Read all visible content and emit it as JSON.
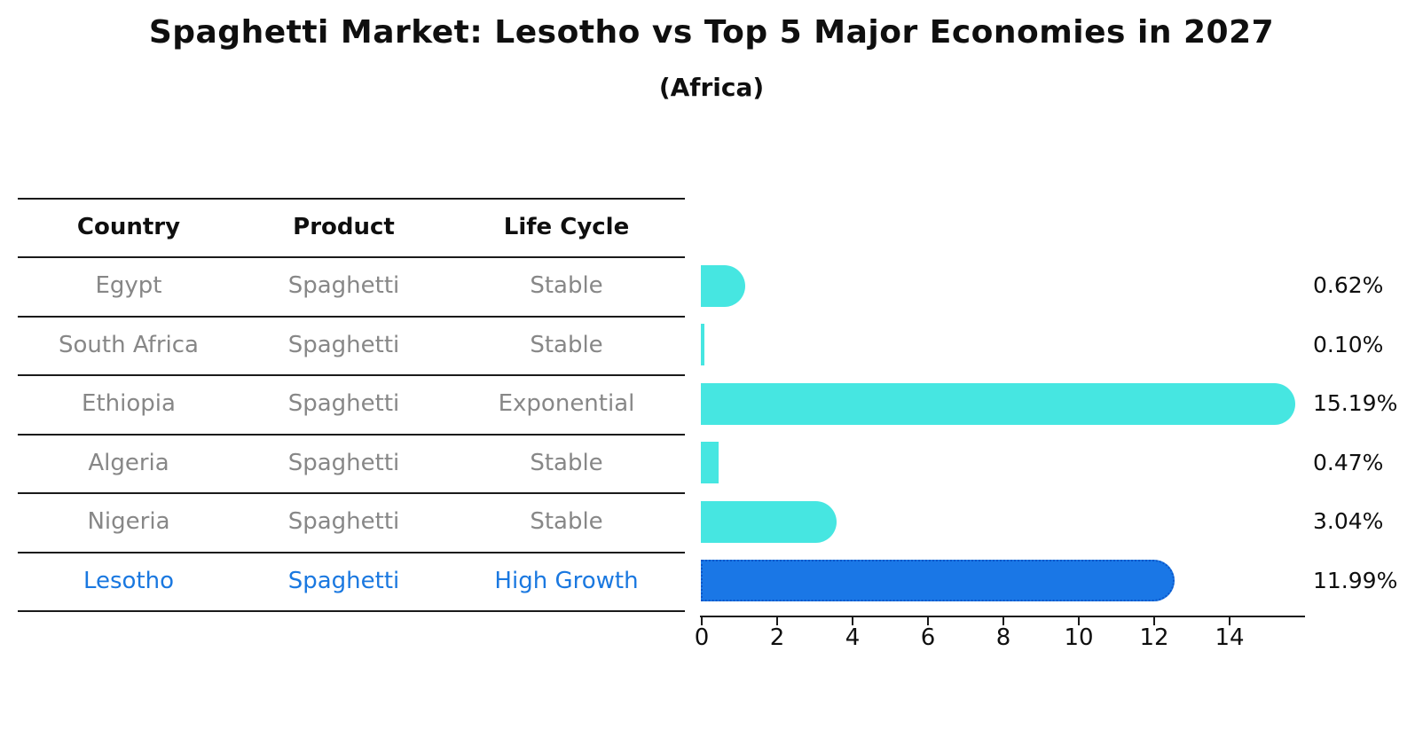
{
  "header": {
    "title": "Spaghetti Market: Lesotho vs Top 5 Major Economies in 2027",
    "subtitle": "(Africa)"
  },
  "table": {
    "columns": [
      "Country",
      "Product",
      "Life Cycle"
    ],
    "rows": [
      {
        "country": "Egypt",
        "product": "Spaghetti",
        "life_cycle": "Stable",
        "highlight": false
      },
      {
        "country": "South Africa",
        "product": "Spaghetti",
        "life_cycle": "Stable",
        "highlight": false
      },
      {
        "country": "Ethiopia",
        "product": "Spaghetti",
        "life_cycle": "Exponential",
        "highlight": false
      },
      {
        "country": "Algeria",
        "product": "Spaghetti",
        "life_cycle": "Stable",
        "highlight": false
      },
      {
        "country": "Nigeria",
        "product": "Spaghetti",
        "life_cycle": "Stable",
        "highlight": false
      },
      {
        "country": "Lesotho",
        "product": "Spaghetti",
        "life_cycle": "High Growth",
        "highlight": true
      }
    ]
  },
  "chart_data": {
    "type": "bar",
    "orientation": "horizontal",
    "title": "Spaghetti Market: Lesotho vs Top 5 Major Economies in 2027",
    "subtitle": "(Africa)",
    "categories": [
      "Egypt",
      "South Africa",
      "Ethiopia",
      "Algeria",
      "Nigeria",
      "Lesotho"
    ],
    "values": [
      0.62,
      0.1,
      15.19,
      0.47,
      3.04,
      11.99
    ],
    "value_labels": [
      "0.62%",
      "0.10%",
      "15.19%",
      "0.47%",
      "3.04%",
      "11.99%"
    ],
    "xticks": [
      0,
      2,
      4,
      6,
      8,
      10,
      12,
      14
    ],
    "xlim": [
      0,
      15.95
    ],
    "grid": false,
    "legend": "none",
    "highlight_index": 5
  },
  "colors": {
    "bar_cyan": "#46E6E1",
    "bar_blue": "#1A77E6",
    "bar_blue_border": "#0B57C9",
    "row_text_gray": "#878787",
    "highlight_text": "#1A78E0",
    "line_black": "#1a1a1a"
  }
}
